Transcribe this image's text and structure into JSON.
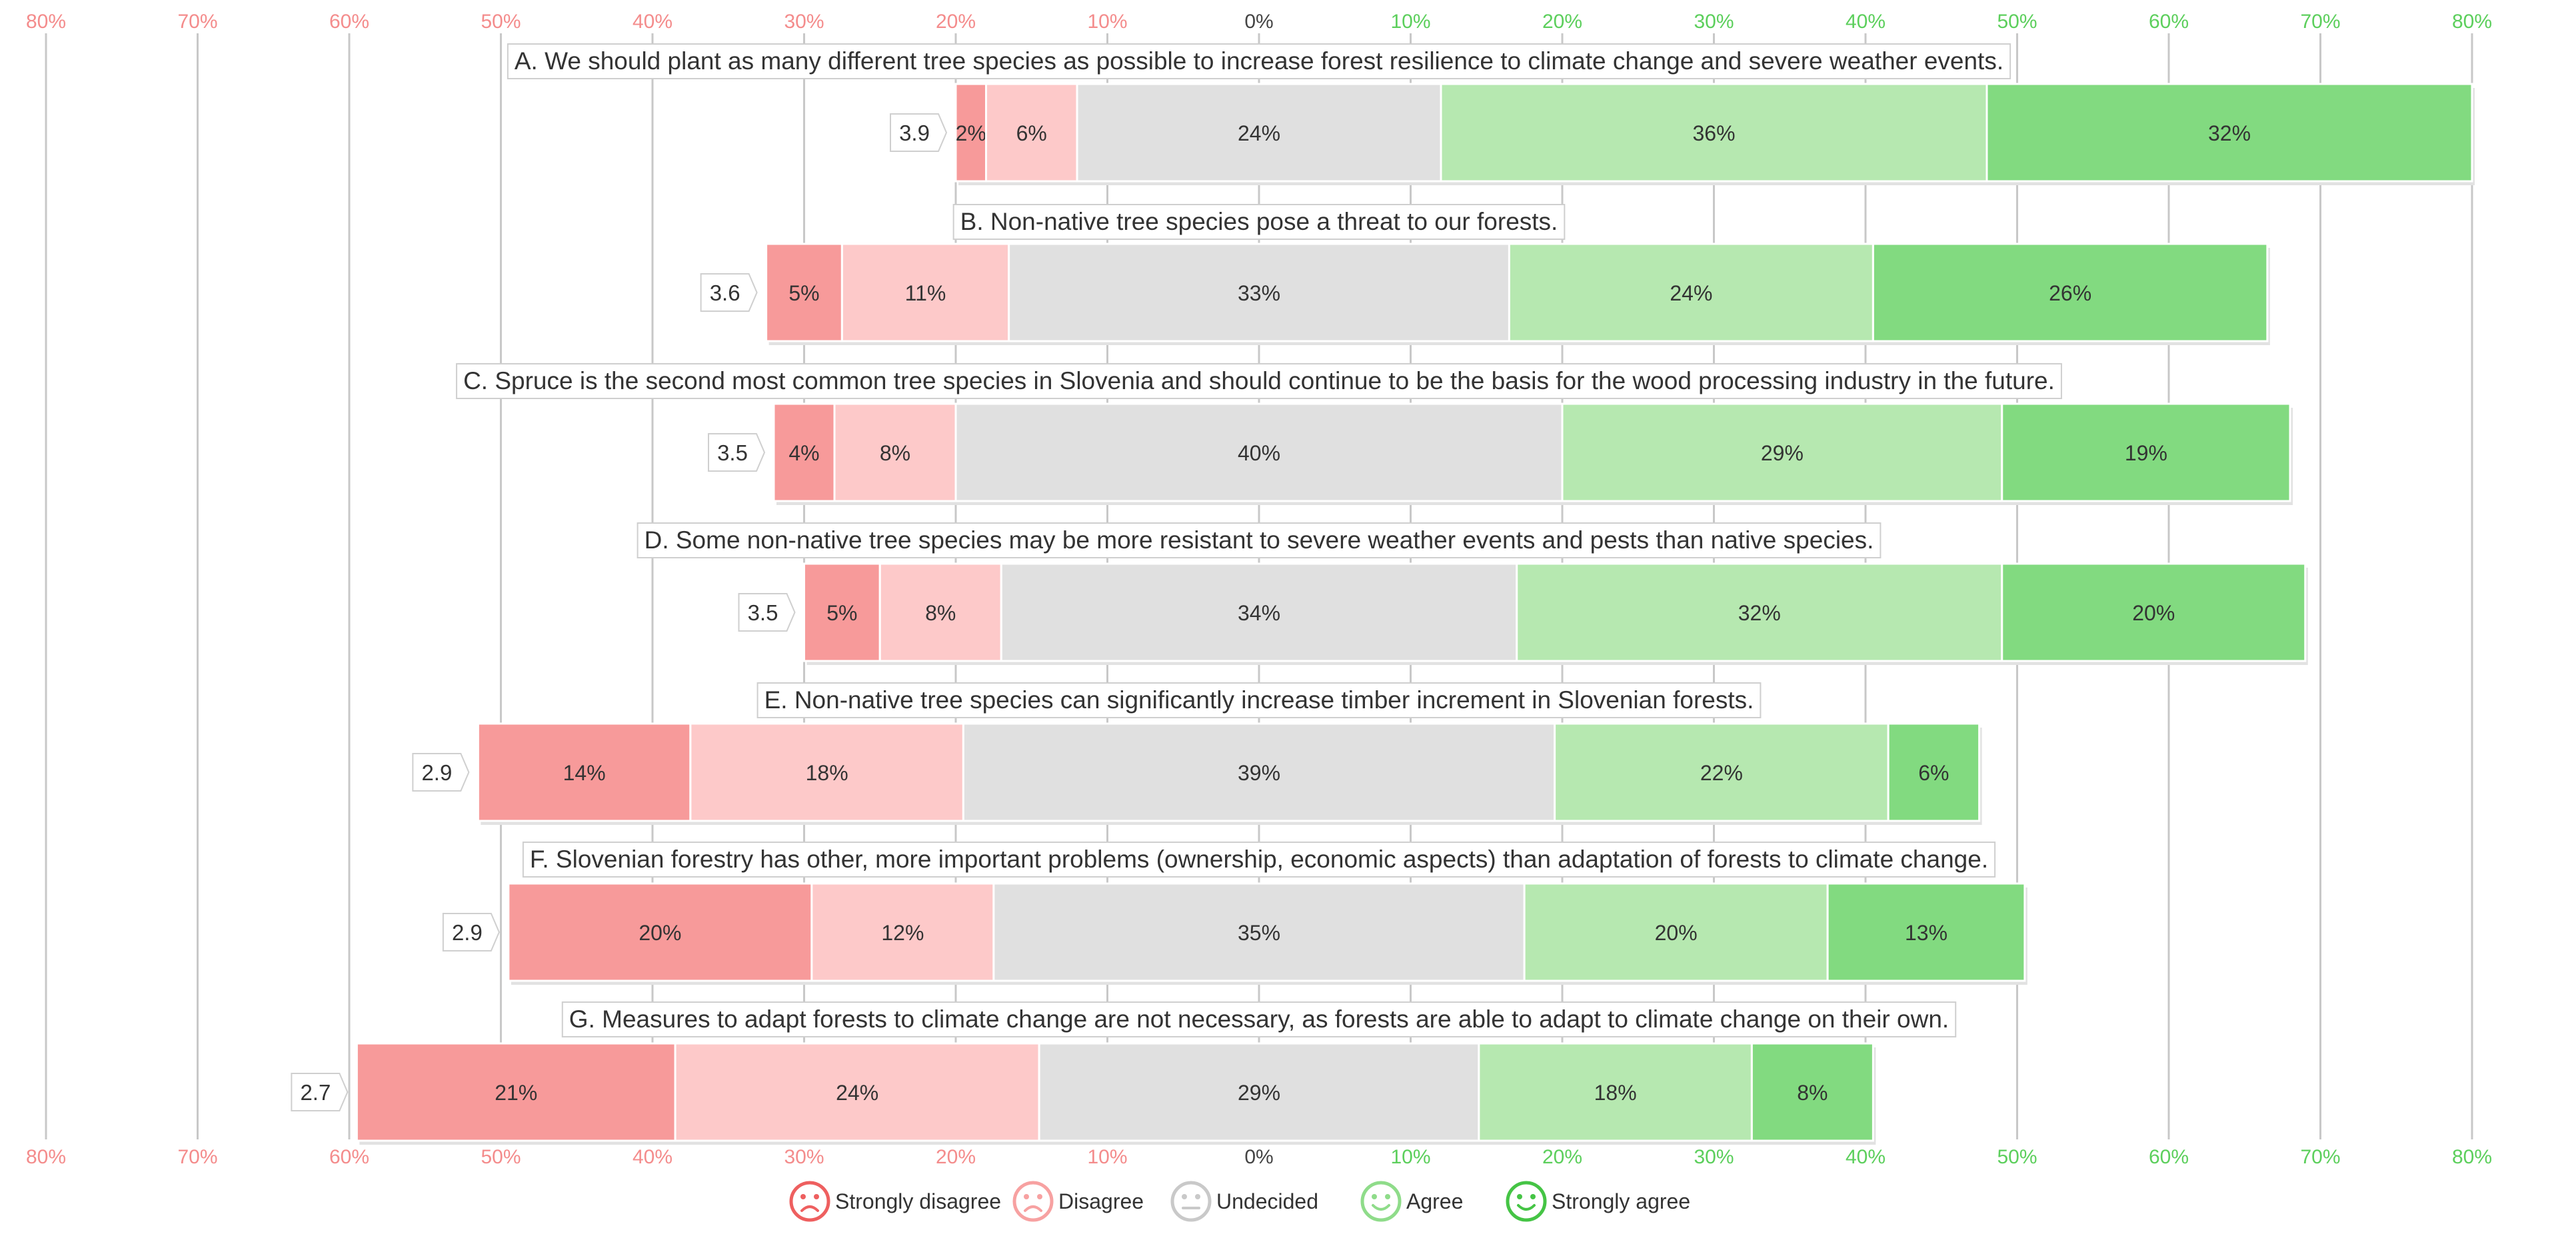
{
  "chart_data": {
    "type": "bar",
    "subtype": "diverging-stacked-likert",
    "xlim": [
      -80,
      80
    ],
    "tick_values": [
      -80,
      -70,
      -60,
      -50,
      -40,
      -30,
      -20,
      -10,
      0,
      10,
      20,
      30,
      40,
      50,
      60,
      70,
      80
    ],
    "tick_labels": [
      "80%",
      "70%",
      "60%",
      "50%",
      "40%",
      "30%",
      "20%",
      "10%",
      "0%",
      "10%",
      "20%",
      "30%",
      "40%",
      "50%",
      "60%",
      "70%",
      "80%"
    ],
    "series": [
      {
        "name": "Strongly disagree",
        "color": "#f79a9a"
      },
      {
        "name": "Disagree",
        "color": "#fdc9c9"
      },
      {
        "name": "Undecided",
        "color": "#e0e0e0"
      },
      {
        "name": "Agree",
        "color": "#b6e8b0"
      },
      {
        "name": "Strongly agree",
        "color": "#82da80"
      }
    ],
    "items": [
      {
        "question": "A. We should plant as many different tree species as possible to increase forest resilience to climate change and severe weather events.",
        "mean": "3.9",
        "values": [
          2,
          6,
          24,
          36,
          32
        ],
        "labels": [
          "2%",
          "6%",
          "24%",
          "36%",
          "32%"
        ]
      },
      {
        "question": "B. Non-native tree species pose a threat to our forests.",
        "mean": "3.6",
        "values": [
          5,
          11,
          33,
          24,
          26
        ],
        "labels": [
          "5%",
          "11%",
          "33%",
          "24%",
          "26%"
        ]
      },
      {
        "question": "C. Spruce is the second most common tree species in Slovenia and should continue to be the basis for the wood processing industry in the future.",
        "mean": "3.5",
        "values": [
          4,
          8,
          40,
          29,
          19
        ],
        "labels": [
          "4%",
          "8%",
          "40%",
          "29%",
          "19%"
        ]
      },
      {
        "question": "D. Some non-native tree species may be more resistant to severe weather events and pests than native species.",
        "mean": "3.5",
        "values": [
          5,
          8,
          34,
          32,
          20
        ],
        "labels": [
          "5%",
          "8%",
          "34%",
          "32%",
          "20%"
        ]
      },
      {
        "question": "E. Non-native tree species can significantly increase timber increment in Slovenian forests.",
        "mean": "2.9",
        "values": [
          14,
          18,
          39,
          22,
          6
        ],
        "labels": [
          "14%",
          "18%",
          "39%",
          "22%",
          "6%"
        ]
      },
      {
        "question": "F. Slovenian forestry has other, more important problems (ownership, economic aspects) than adaptation of forests to climate change.",
        "mean": "2.9",
        "values": [
          20,
          12,
          35,
          20,
          13
        ],
        "labels": [
          "20%",
          "12%",
          "35%",
          "20%",
          "13%"
        ]
      },
      {
        "question": "G. Measures to adapt forests to climate change are not necessary, as forests are able to adapt to climate change on their own.",
        "mean": "2.7",
        "values": [
          21,
          24,
          29,
          18,
          8
        ],
        "labels": [
          "21%",
          "24%",
          "29%",
          "18%",
          "8%"
        ]
      }
    ],
    "colors": {
      "negative_tick": "#f48c8c",
      "positive_tick": "#5ccf5c",
      "neutral_tick": "#444444",
      "gridline": "#c8c8c8",
      "text": "#333333",
      "face_negative": "#ee5f5f",
      "face_disagree": "#f7a1a1",
      "face_neutral": "#c9c9c9",
      "face_agree": "#8fdc8a",
      "face_strong_agree": "#45c445"
    }
  }
}
